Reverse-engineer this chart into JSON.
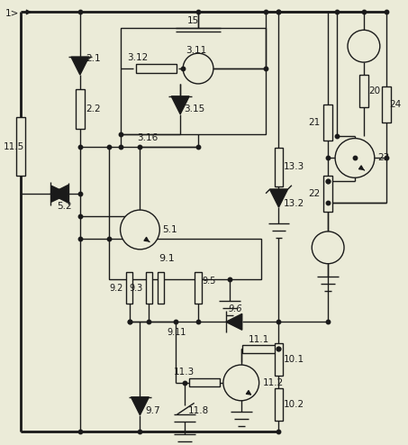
{
  "bg_color": "#ebebd8",
  "line_color": "#1a1a1a",
  "text_color": "#1a1a1a",
  "figsize": [
    4.53,
    4.94
  ],
  "dpi": 100,
  "lw": 1.0,
  "lw_thick": 2.0
}
